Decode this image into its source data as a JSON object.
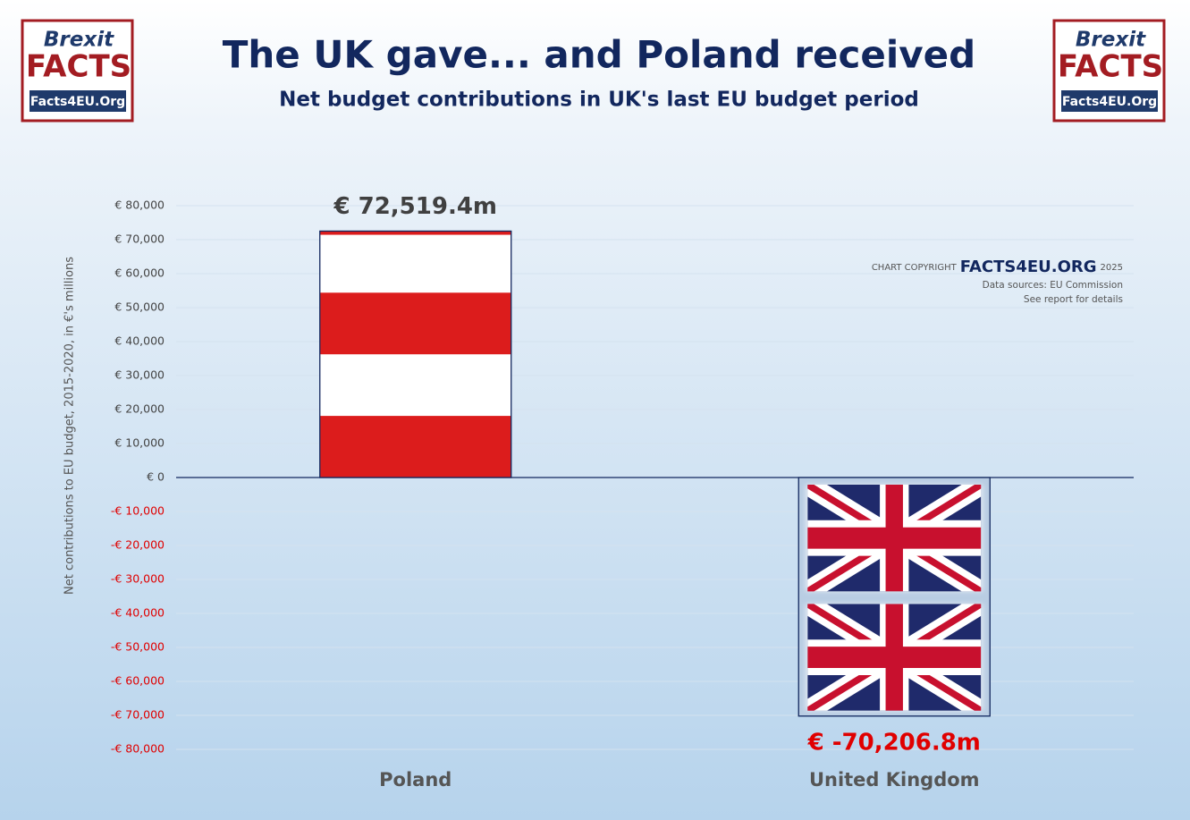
{
  "chart_data": {
    "type": "bar",
    "title": "The UK gave... and Poland received",
    "subtitle": "Net budget contributions in UK's last EU budget period",
    "y_axis_label": "Net contributions to EU budget, 2015-2020, in €'s millions",
    "categories": [
      "Poland",
      "United Kingdom"
    ],
    "values": [
      72519.4,
      -70206.8
    ],
    "value_labels": [
      "€ 72,519.4m",
      "€ -70,206.8m"
    ],
    "ylim": [
      -80000,
      80000
    ],
    "yticks": [
      {
        "value": 80000,
        "label": "€ 80,000"
      },
      {
        "value": 70000,
        "label": "€ 70,000"
      },
      {
        "value": 60000,
        "label": "€ 60,000"
      },
      {
        "value": 50000,
        "label": "€ 50,000"
      },
      {
        "value": 40000,
        "label": "€ 40,000"
      },
      {
        "value": 30000,
        "label": "€ 30,000"
      },
      {
        "value": 20000,
        "label": "€ 20,000"
      },
      {
        "value": 10000,
        "label": "€ 10,000"
      },
      {
        "value": 0,
        "label": "€ 0"
      },
      {
        "value": -10000,
        "label": "-€ 10,000"
      },
      {
        "value": -20000,
        "label": "-€ 20,000"
      },
      {
        "value": -30000,
        "label": "-€ 30,000"
      },
      {
        "value": -40000,
        "label": "-€ 40,000"
      },
      {
        "value": -50000,
        "label": "-€ 50,000"
      },
      {
        "value": -60000,
        "label": "-€ 60,000"
      },
      {
        "value": -70000,
        "label": "-€ 70,000"
      },
      {
        "value": -80000,
        "label": "-€ 80,000"
      }
    ],
    "grid": true,
    "copyright": {
      "prefix": "CHART COPYRIGHT",
      "brand": "FACTS4EU.ORG",
      "year": "2025",
      "source": "Data sources: EU Commission",
      "note": "See report for details"
    },
    "logo": {
      "line1": "Brexit",
      "line2": "FACTS",
      "line3": "Facts4EU.Org"
    }
  }
}
